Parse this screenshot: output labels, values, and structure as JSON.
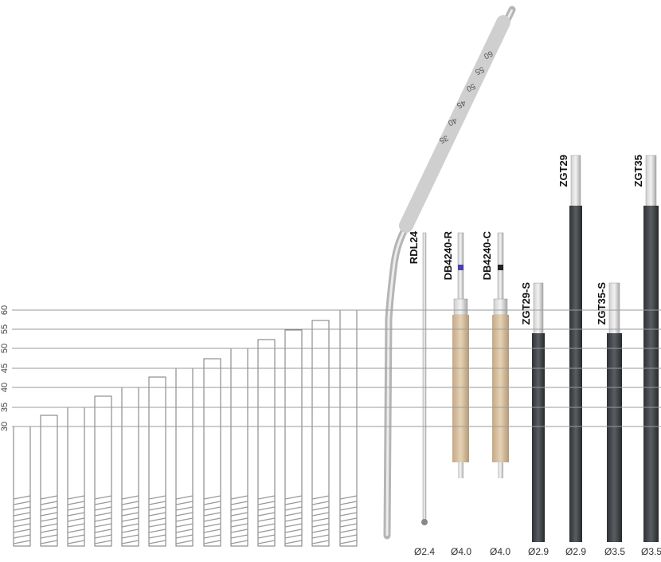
{
  "scale": {
    "labels": [
      "30",
      "35",
      "40",
      "45",
      "50",
      "55",
      "60"
    ]
  },
  "gauge": {
    "marks": [
      "35",
      "40",
      "45",
      "50",
      "55",
      "60"
    ]
  },
  "tools": [
    {
      "name": "RDL24",
      "diameter": "Ø2.4"
    },
    {
      "name": "DB4240-R",
      "diameter": "Ø4.0"
    },
    {
      "name": "DB4240-C",
      "diameter": "Ø4.0"
    },
    {
      "name": "ZGT29-S",
      "diameter": "Ø2.9"
    },
    {
      "name": "ZGT29",
      "diameter": "Ø2.9"
    },
    {
      "name": "ZGT35-S",
      "diameter": "Ø3.5"
    },
    {
      "name": "ZGT35",
      "diameter": "Ø3.5"
    }
  ]
}
